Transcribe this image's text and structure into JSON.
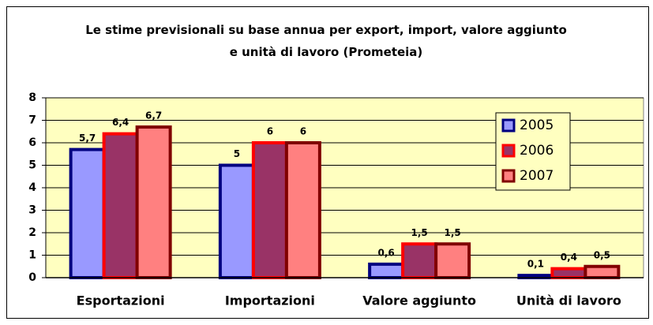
{
  "chart_data": {
    "type": "bar",
    "title": "Le stime previsionali su base annua per export, import, valore aggiunto e unità di lavoro (Prometeia)",
    "categories": [
      "Esportazioni",
      "Importazioni",
      "Valore aggiunto",
      "Unità di lavoro"
    ],
    "series": [
      {
        "name": "2005",
        "color": "#9999ff",
        "edgecolor": "#000080",
        "values": [
          5.7,
          5,
          0.6,
          0.1
        ],
        "value_labels": [
          "5,7",
          "5",
          "0,6",
          "0,1"
        ]
      },
      {
        "name": "2006",
        "color": "#993366",
        "edgecolor": "#ff0000",
        "values": [
          6.4,
          6,
          1.5,
          0.4
        ],
        "value_labels": [
          "6,4",
          "6",
          "1,5",
          "0,4"
        ]
      },
      {
        "name": "2007",
        "color": "#ff8080",
        "edgecolor": "#800000",
        "values": [
          6.7,
          6,
          1.5,
          0.5
        ],
        "value_labels": [
          "6,7",
          "6",
          "1,5",
          "0,5"
        ]
      }
    ],
    "ylim": [
      0,
      8
    ],
    "yticks": [
      0,
      1,
      2,
      3,
      4,
      5,
      6,
      7,
      8
    ],
    "grid": true,
    "legend": "upper right"
  }
}
